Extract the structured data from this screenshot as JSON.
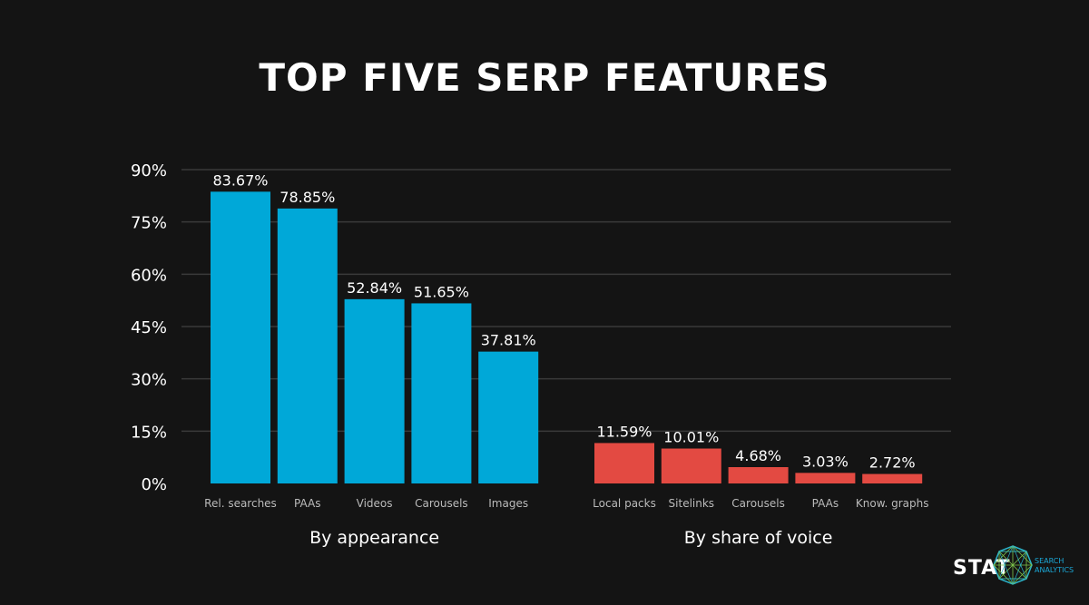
{
  "chart_data": {
    "type": "bar",
    "title": "TOP FIVE SERP FEATURES",
    "ylim": [
      0,
      90
    ],
    "yticks": [
      "0%",
      "15%",
      "30%",
      "45%",
      "60%",
      "75%",
      "90%"
    ],
    "ytick_values": [
      0,
      15,
      30,
      45,
      60,
      75,
      90
    ],
    "grid": true,
    "groups": [
      {
        "label": "By appearance",
        "color": "#00A8D8",
        "categories": [
          "Rel. searches",
          "PAAs",
          "Videos",
          "Carousels",
          "Images"
        ],
        "values": [
          83.67,
          78.85,
          52.84,
          51.65,
          37.81
        ],
        "labels": [
          "83.67%",
          "78.85%",
          "52.84%",
          "51.65%",
          "37.81%"
        ]
      },
      {
        "label": "By share of voice",
        "color": "#E34A42",
        "categories": [
          "Local packs",
          "Sitelinks",
          "Carousels",
          "PAAs",
          "Know. graphs"
        ],
        "values": [
          11.59,
          10.01,
          4.68,
          3.03,
          2.72
        ],
        "labels": [
          "11.59%",
          "10.01%",
          "4.68%",
          "3.03%",
          "2.72%"
        ]
      }
    ]
  },
  "logo": {
    "text": "STAT",
    "subtext": "SEARCH ANALYTICS"
  }
}
